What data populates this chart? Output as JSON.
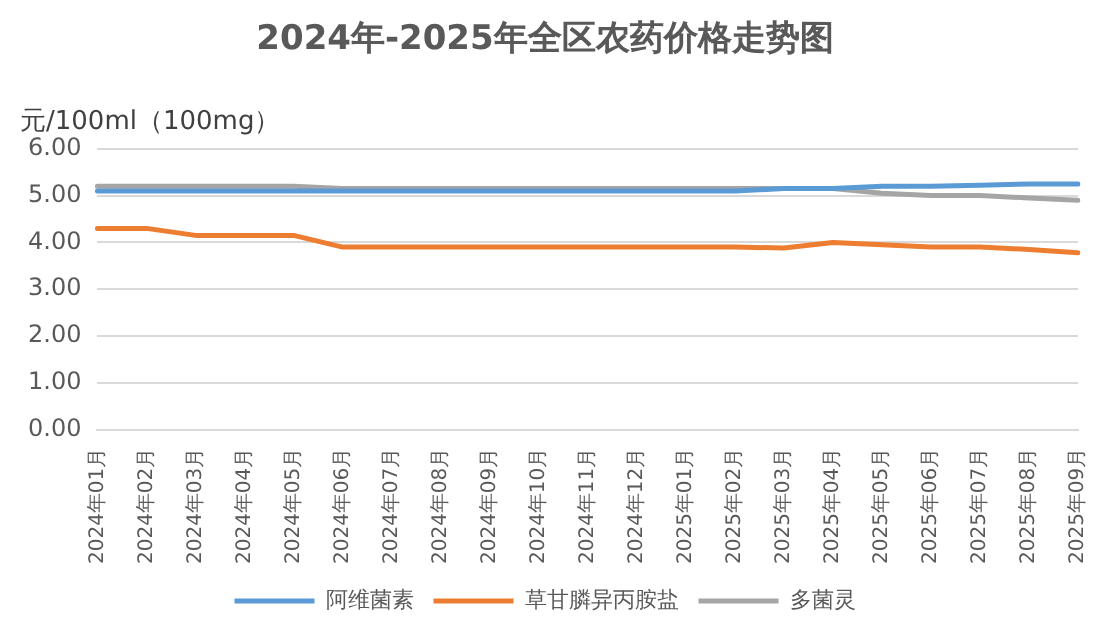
{
  "chart_data": {
    "type": "line",
    "title": "2024年-2025年全区农药价格走势图",
    "ylabel": "元/100ml（100mg）",
    "categories": [
      "2024年01月",
      "2024年02月",
      "2024年03月",
      "2024年04月",
      "2024年05月",
      "2024年06月",
      "2024年07月",
      "2024年08月",
      "2024年09月",
      "2024年10月",
      "2024年11月",
      "2024年12月",
      "2025年01月",
      "2025年02月",
      "2025年03月",
      "2025年04月",
      "2025年05月",
      "2025年06月",
      "2025年07月",
      "2025年08月",
      "2025年09月"
    ],
    "series": [
      {
        "name": "阿维菌素",
        "color": "#5b9bd5",
        "values": [
          5.1,
          5.1,
          5.1,
          5.1,
          5.1,
          5.1,
          5.1,
          5.1,
          5.1,
          5.1,
          5.1,
          5.1,
          5.1,
          5.1,
          5.15,
          5.15,
          5.2,
          5.2,
          5.22,
          5.25,
          5.25
        ]
      },
      {
        "name": "草甘膦异丙胺盐",
        "color": "#ed7d31",
        "values": [
          4.3,
          4.3,
          4.15,
          4.15,
          4.15,
          3.9,
          3.9,
          3.9,
          3.9,
          3.9,
          3.9,
          3.9,
          3.9,
          3.9,
          3.88,
          4.0,
          3.95,
          3.9,
          3.9,
          3.85,
          3.78
        ]
      },
      {
        "name": "多菌灵",
        "color": "#a5a5a5",
        "values": [
          5.2,
          5.2,
          5.2,
          5.2,
          5.2,
          5.15,
          5.15,
          5.15,
          5.15,
          5.15,
          5.15,
          5.15,
          5.15,
          5.15,
          5.15,
          5.15,
          5.05,
          5.0,
          5.0,
          4.95,
          4.9
        ]
      }
    ],
    "ylim": [
      0,
      6
    ],
    "yticks": [
      {
        "value": 0,
        "label": "0.00"
      },
      {
        "value": 1,
        "label": "1.00"
      },
      {
        "value": 2,
        "label": "2.00"
      },
      {
        "value": 3,
        "label": "3.00"
      },
      {
        "value": 4,
        "label": "4.00"
      },
      {
        "value": 5,
        "label": "5.00"
      },
      {
        "value": 6,
        "label": "6.00"
      }
    ],
    "grid": "y",
    "legend": "bottom",
    "marker": "none",
    "line_style": "solid"
  }
}
